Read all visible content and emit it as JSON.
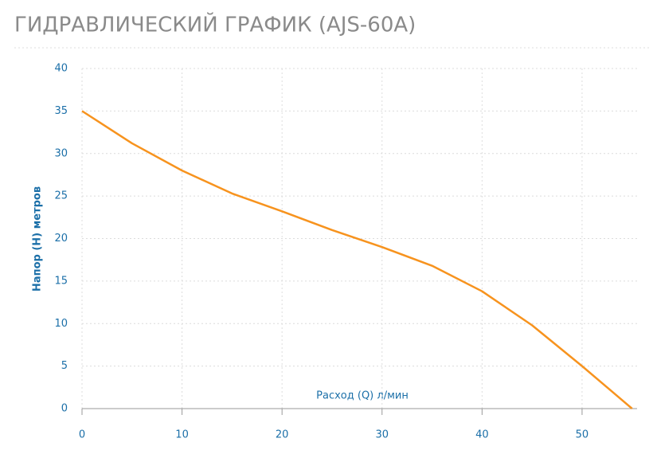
{
  "chart_data": {
    "type": "line",
    "title": "ГИДРАВЛИЧЕСКИЙ ГРАФИК (AJS-60A)",
    "x_label": "Расход (Q) л/мин",
    "y_label": "Напор (H) метров",
    "x": [
      0,
      5,
      10,
      15,
      20,
      25,
      30,
      35,
      40,
      45,
      50,
      55
    ],
    "series": [
      {
        "name": "AJS-60A",
        "color": "#f7931e",
        "values": [
          35,
          31.2,
          28,
          25.3,
          23.2,
          21,
          19,
          16.8,
          13.8,
          9.8,
          5,
          0
        ]
      }
    ],
    "xlim": [
      0,
      55.5
    ],
    "xticks": [
      0,
      10,
      20,
      30,
      40,
      50
    ],
    "ylim": [
      0,
      40
    ],
    "yticks": [
      0,
      5,
      10,
      15,
      20,
      25,
      30,
      35,
      40
    ],
    "grid": true
  }
}
